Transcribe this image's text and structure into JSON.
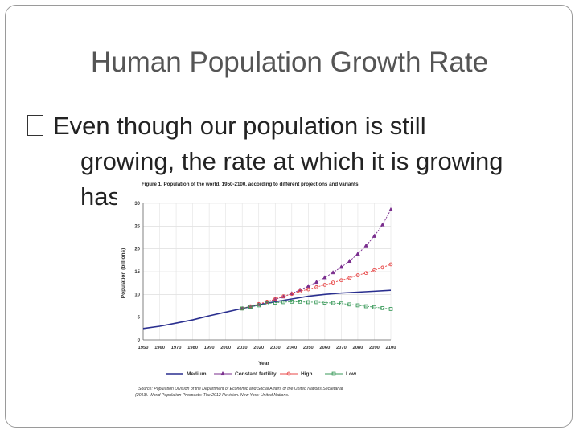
{
  "slide": {
    "title": "Human Population Growth Rate",
    "bullet_line1": "Even though our population is still",
    "bullet_line2": "growing, the rate at which it is growing",
    "bullet_line3": "has s"
  },
  "chart_data": {
    "type": "line",
    "title": "Figure 1.  Population of the world, 1950-2100, according to different projections and variants",
    "xlabel": "Year",
    "ylabel": "Population (billions)",
    "xlim": [
      1950,
      2100
    ],
    "ylim": [
      0,
      30
    ],
    "xticks": [
      "1950",
      "1960",
      "1970",
      "1980",
      "1990",
      "2000",
      "2010",
      "2020",
      "2030",
      "2040",
      "2050",
      "2060",
      "2070",
      "2080",
      "2090",
      "2100"
    ],
    "yticks": [
      "0",
      "5",
      "10",
      "15",
      "20",
      "25",
      "30"
    ],
    "legend_position": "bottom",
    "series": [
      {
        "name": "Medium",
        "color": "#2a2f8f",
        "marker": "none",
        "x": [
          1950,
          1960,
          1970,
          1980,
          1990,
          2000,
          2010,
          2020,
          2030,
          2040,
          2050,
          2060,
          2070,
          2080,
          2090,
          2100
        ],
        "y": [
          2.5,
          3.0,
          3.7,
          4.4,
          5.3,
          6.1,
          6.9,
          7.7,
          8.4,
          9.0,
          9.6,
          10.0,
          10.3,
          10.5,
          10.7,
          10.9
        ]
      },
      {
        "name": "Constant fertility",
        "color": "#7a2e8e",
        "marker": "triangle",
        "x": [
          2010,
          2015,
          2020,
          2025,
          2030,
          2035,
          2040,
          2045,
          2050,
          2055,
          2060,
          2065,
          2070,
          2075,
          2080,
          2085,
          2090,
          2095,
          2100
        ],
        "y": [
          6.9,
          7.3,
          7.8,
          8.3,
          8.9,
          9.5,
          10.2,
          11.0,
          11.8,
          12.7,
          13.7,
          14.8,
          16.0,
          17.3,
          18.9,
          20.7,
          22.8,
          25.3,
          28.6
        ]
      },
      {
        "name": "High",
        "color": "#e84a4a",
        "marker": "circle",
        "x": [
          2010,
          2015,
          2020,
          2025,
          2030,
          2035,
          2040,
          2045,
          2050,
          2055,
          2060,
          2065,
          2070,
          2075,
          2080,
          2085,
          2090,
          2095,
          2100
        ],
        "y": [
          6.9,
          7.4,
          7.9,
          8.4,
          9.0,
          9.6,
          10.1,
          10.7,
          11.1,
          11.6,
          12.1,
          12.6,
          13.1,
          13.6,
          14.2,
          14.7,
          15.3,
          15.9,
          16.6
        ]
      },
      {
        "name": "Low",
        "color": "#3a9a5a",
        "marker": "square",
        "x": [
          2010,
          2015,
          2020,
          2025,
          2030,
          2035,
          2040,
          2045,
          2050,
          2055,
          2060,
          2065,
          2070,
          2075,
          2080,
          2085,
          2090,
          2095,
          2100
        ],
        "y": [
          6.9,
          7.3,
          7.6,
          8.0,
          8.2,
          8.3,
          8.4,
          8.4,
          8.3,
          8.3,
          8.2,
          8.1,
          8.0,
          7.8,
          7.6,
          7.4,
          7.2,
          7.0,
          6.8
        ]
      }
    ],
    "source_line1": "Source:  Population Division of the Department of Economic and Social Affairs of the United Nations Secretariat",
    "source_line2": "(2013). World Population Prospects: The 2012 Revision. New York: United Nations."
  }
}
